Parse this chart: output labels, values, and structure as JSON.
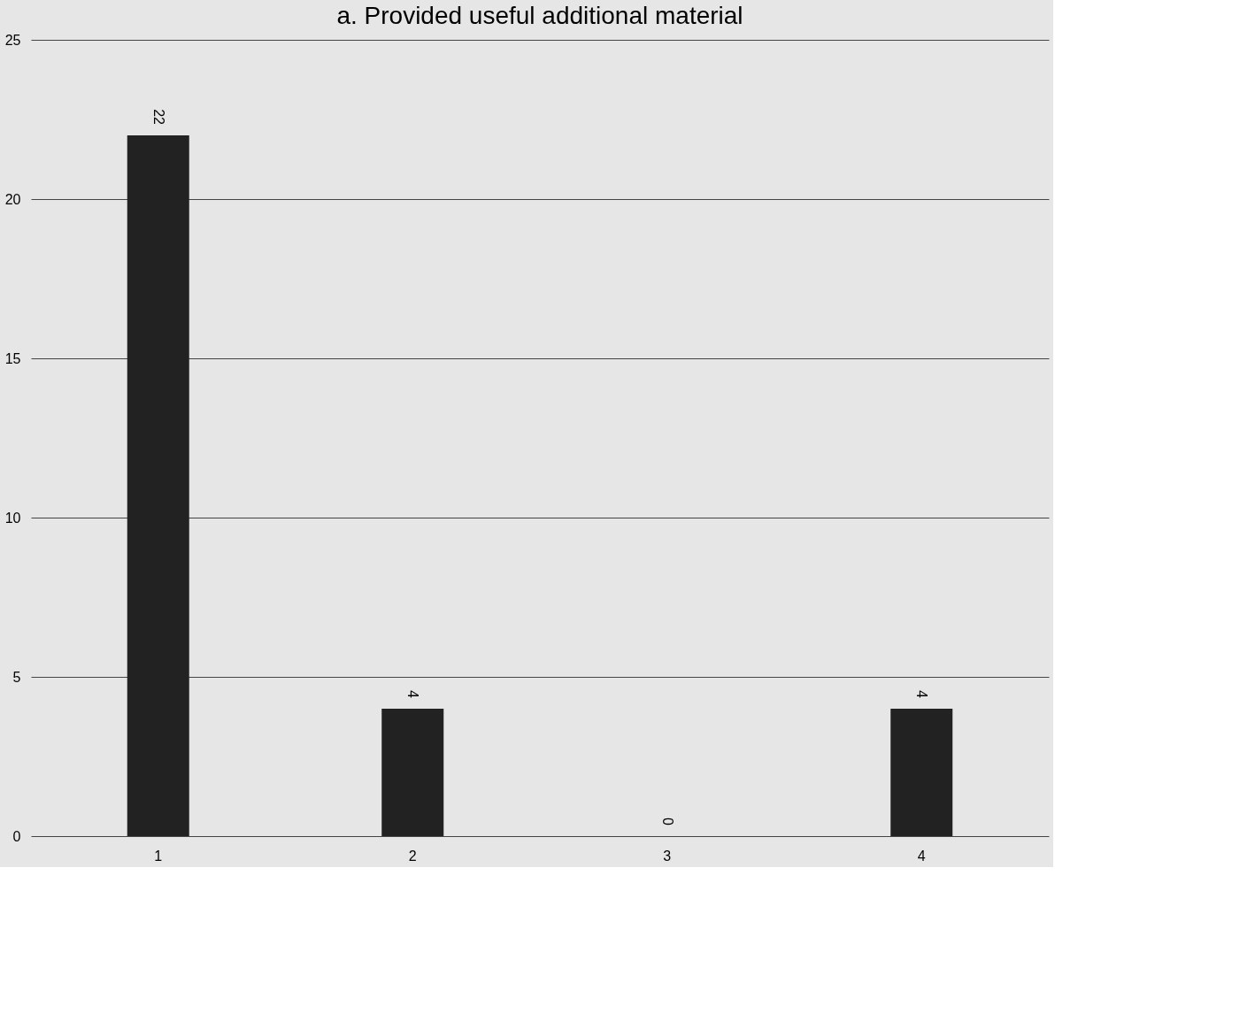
{
  "chart_data": {
    "type": "bar",
    "title": "a. Provided useful additional material",
    "categories": [
      "1",
      "2",
      "3",
      "4"
    ],
    "values": [
      22,
      4,
      0,
      4
    ],
    "color": "#222222",
    "ylim": [
      0,
      25
    ],
    "yticks": [
      0,
      5,
      10,
      15,
      20,
      25
    ],
    "grid": "y",
    "data_labels": true
  }
}
